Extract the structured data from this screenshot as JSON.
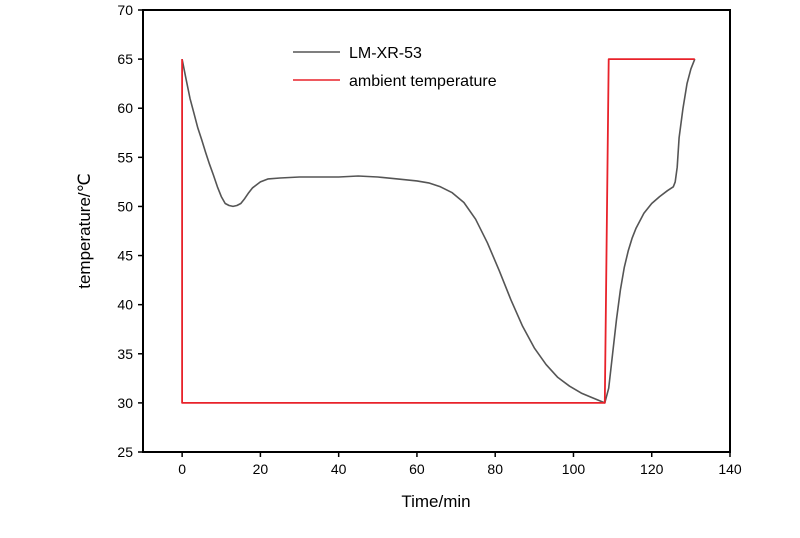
{
  "chart_data": {
    "type": "line",
    "xlabel": "Time/min",
    "ylabel": "temperature/℃",
    "xlim": [
      -10,
      140
    ],
    "ylim": [
      25,
      70
    ],
    "x_ticks": [
      0,
      20,
      40,
      60,
      80,
      100,
      120,
      140
    ],
    "y_ticks": [
      25,
      30,
      35,
      40,
      45,
      50,
      55,
      60,
      65,
      70
    ],
    "grid": false,
    "legend_position": "top-center",
    "series": [
      {
        "name": "LM-XR-53",
        "color": "#555555",
        "points": [
          [
            0,
            65
          ],
          [
            1,
            63
          ],
          [
            2,
            61
          ],
          [
            3,
            59.5
          ],
          [
            4,
            58
          ],
          [
            5,
            56.8
          ],
          [
            6,
            55.5
          ],
          [
            7,
            54.3
          ],
          [
            8,
            53.2
          ],
          [
            9,
            52
          ],
          [
            10,
            51
          ],
          [
            11,
            50.3
          ],
          [
            12,
            50.1
          ],
          [
            13,
            50
          ],
          [
            14,
            50.1
          ],
          [
            15,
            50.3
          ],
          [
            16,
            50.8
          ],
          [
            17,
            51.4
          ],
          [
            18,
            51.9
          ],
          [
            20,
            52.5
          ],
          [
            22,
            52.8
          ],
          [
            25,
            52.9
          ],
          [
            30,
            53
          ],
          [
            35,
            53
          ],
          [
            40,
            53
          ],
          [
            45,
            53.1
          ],
          [
            50,
            53
          ],
          [
            55,
            52.8
          ],
          [
            60,
            52.6
          ],
          [
            63,
            52.4
          ],
          [
            66,
            52
          ],
          [
            69,
            51.4
          ],
          [
            72,
            50.4
          ],
          [
            75,
            48.7
          ],
          [
            78,
            46.3
          ],
          [
            81,
            43.5
          ],
          [
            84,
            40.5
          ],
          [
            87,
            37.8
          ],
          [
            90,
            35.6
          ],
          [
            93,
            33.9
          ],
          [
            96,
            32.6
          ],
          [
            99,
            31.7
          ],
          [
            102,
            31
          ],
          [
            105,
            30.5
          ],
          [
            108,
            30
          ],
          [
            109,
            31.5
          ],
          [
            110,
            35
          ],
          [
            111,
            38.5
          ],
          [
            112,
            41.5
          ],
          [
            113,
            43.8
          ],
          [
            114,
            45.5
          ],
          [
            115,
            46.8
          ],
          [
            116,
            47.8
          ],
          [
            118,
            49.3
          ],
          [
            120,
            50.3
          ],
          [
            122,
            51
          ],
          [
            124,
            51.6
          ],
          [
            125.5,
            52
          ],
          [
            126,
            52.5
          ],
          [
            126.5,
            54
          ],
          [
            127,
            57
          ],
          [
            128,
            60
          ],
          [
            129,
            62.5
          ],
          [
            130,
            64
          ],
          [
            131,
            65
          ]
        ]
      },
      {
        "name": "ambient temperature",
        "color": "#e8222a",
        "points": [
          [
            0,
            65
          ],
          [
            0,
            30
          ],
          [
            108,
            30
          ],
          [
            109,
            65
          ],
          [
            131,
            65
          ]
        ]
      }
    ]
  }
}
